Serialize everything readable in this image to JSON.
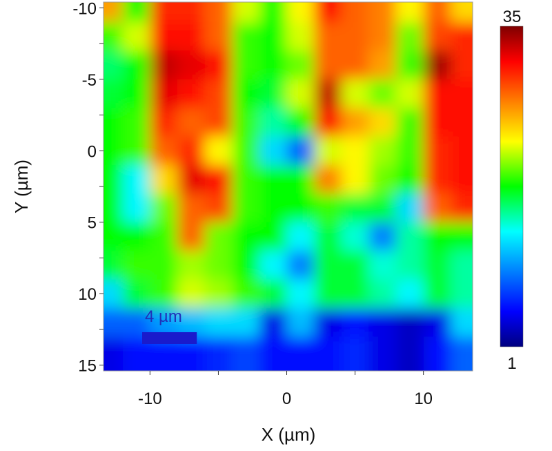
{
  "chart_data": {
    "type": "heatmap",
    "xlabel": "X (µm)",
    "ylabel": "Y (µm)",
    "xlim": [
      -13.4,
      13.6
    ],
    "ylim": [
      15.4,
      -10.4
    ],
    "x_ticks": [
      -10,
      0,
      10
    ],
    "x_tick_labels": [
      "-10",
      "0",
      "10"
    ],
    "y_ticks": [
      -10,
      -5,
      0,
      5,
      10,
      15
    ],
    "y_tick_labels": [
      "-10",
      "-5",
      "0",
      "5",
      "10",
      "15"
    ],
    "colormap": "jet",
    "color_range": [
      1,
      35
    ],
    "colorbar_labels": {
      "max": "35",
      "min": "1"
    },
    "scale_bar": {
      "label": "4 µm",
      "length_um": 4,
      "color": "#1a1acc"
    },
    "x": [
      -13,
      -11,
      -9,
      -7,
      -5,
      -3,
      -1,
      1,
      3,
      5,
      7,
      9,
      11,
      13
    ],
    "y": [
      -10,
      -8,
      -6,
      -4,
      -2,
      0,
      2,
      4,
      6,
      8,
      10,
      12,
      14
    ],
    "z": [
      [
        26,
        18,
        30,
        30,
        28,
        22,
        18,
        23,
        31,
        28,
        27,
        23,
        28,
        24
      ],
      [
        19,
        22,
        31,
        31,
        28,
        19,
        18,
        22,
        28,
        28,
        27,
        20,
        29,
        30
      ],
      [
        16,
        18,
        33,
        32,
        31,
        19,
        18,
        20,
        28,
        28,
        26,
        19,
        34,
        30
      ],
      [
        17,
        18,
        32,
        31,
        29,
        18,
        17,
        22,
        33,
        22,
        20,
        22,
        31,
        31
      ],
      [
        18,
        19,
        30,
        28,
        29,
        19,
        15,
        18,
        31,
        26,
        24,
        19,
        31,
        31
      ],
      [
        18,
        19,
        28,
        30,
        23,
        19,
        12,
        8,
        22,
        23,
        21,
        19,
        30,
        31
      ],
      [
        18,
        13,
        24,
        32,
        31,
        19,
        18,
        18,
        27,
        23,
        20,
        18,
        30,
        31
      ],
      [
        18,
        13,
        20,
        28,
        29,
        19,
        18,
        18,
        19,
        17,
        17,
        12,
        28,
        30
      ],
      [
        18,
        18,
        19,
        28,
        20,
        18,
        18,
        13,
        17,
        14,
        9,
        15,
        18,
        18
      ],
      [
        17,
        19,
        19,
        21,
        20,
        18,
        13,
        9,
        17,
        17,
        14,
        15,
        17,
        15
      ],
      [
        12,
        17,
        19,
        22,
        21,
        19,
        17,
        13,
        17,
        17,
        15,
        13,
        17,
        15
      ],
      [
        8,
        8,
        10,
        11,
        12,
        12,
        4,
        11,
        4,
        5,
        4,
        3,
        4,
        12
      ],
      [
        4,
        5,
        5,
        5,
        6,
        7,
        5,
        5,
        5,
        6,
        4,
        3,
        5,
        8
      ]
    ]
  }
}
